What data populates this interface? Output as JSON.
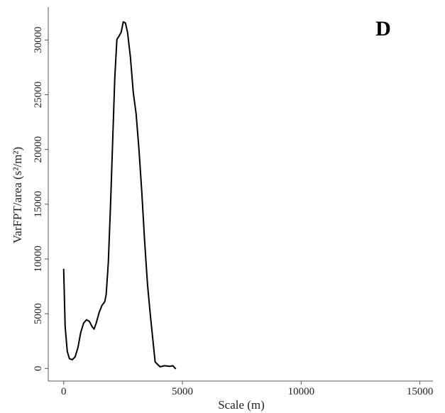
{
  "chart_data": {
    "type": "line",
    "panel_label": "D",
    "x_label": "Scale (m)",
    "y_label": "VarFPT/area (s²/m²)",
    "xlim": [
      -650,
      15550
    ],
    "xticks": [
      0,
      5000,
      10000,
      15000
    ],
    "ylim": [
      -1150,
      33000
    ],
    "yticks": [
      0,
      5000,
      10000,
      15000,
      20000,
      25000,
      30000
    ],
    "color": "#000000",
    "x": [
      0,
      60,
      150,
      240,
      360,
      480,
      600,
      720,
      840,
      960,
      1080,
      1200,
      1280,
      1370,
      1490,
      1610,
      1730,
      1790,
      1880,
      1970,
      2060,
      2150,
      2240,
      2330,
      2420,
      2510,
      2600,
      2690,
      2810,
      2930,
      3050,
      3170,
      3290,
      3410,
      3530,
      3640,
      3760,
      3850,
      3940,
      4060,
      4240,
      4480,
      4600,
      4720
    ],
    "values": [
      9100,
      3800,
      1550,
      900,
      800,
      1050,
      1900,
      3300,
      4150,
      4450,
      4300,
      3800,
      3600,
      4150,
      5100,
      5750,
      6100,
      6750,
      9650,
      14850,
      20650,
      26500,
      30050,
      30350,
      30700,
      31650,
      31550,
      30700,
      28400,
      25200,
      23250,
      20000,
      16100,
      11600,
      7700,
      5100,
      2550,
      600,
      400,
      150,
      250,
      200,
      250,
      -50
    ]
  }
}
